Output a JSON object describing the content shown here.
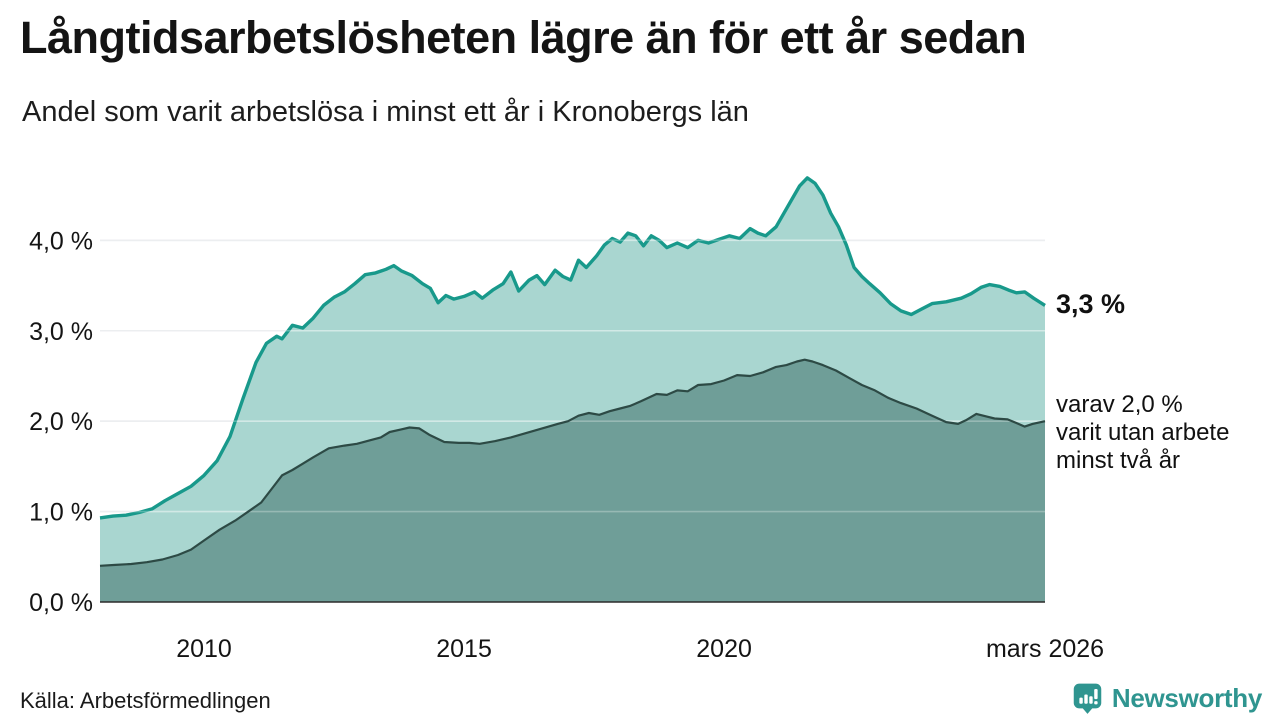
{
  "header": {
    "title": "Långtidsarbetslösheten lägre än för ett år sedan",
    "subtitle": "Andel som varit arbetslösa i minst ett år i Kronobergs län"
  },
  "annotations": {
    "series1_end_label": "3,3 %",
    "series2_label_lines": [
      "varav 2,0 %",
      "varit utan arbete",
      "minst två år"
    ]
  },
  "footer": {
    "source": "Källa: Arbetsförmedlingen",
    "brand": "Newsworthy",
    "brand_icon": "bar-chart-speech-bubble"
  },
  "colors": {
    "series1_line": "#18998b",
    "series1_fill": "#a9d6d0",
    "series2_line": "#2d4a45",
    "series2_fill": "#6f9e98",
    "gridline": "#dcdfe3",
    "axis_line": "#2b2b2b",
    "text": "#141414",
    "brand_teal": "#2f9590"
  },
  "chart_data": {
    "type": "area",
    "title": "Långtidsarbetslösheten lägre än för ett år sedan",
    "subtitle": "Andel som varit arbetslösa i minst ett år i Kronobergs län",
    "xlabel": "",
    "ylabel": "",
    "xlim": [
      2008.0,
      2026.17
    ],
    "ylim": [
      0,
      4.8
    ],
    "grid": true,
    "legend_position": "right-annotations",
    "y_ticks": [
      {
        "v": 0,
        "label": "0,0 %"
      },
      {
        "v": 1,
        "label": "1,0 %"
      },
      {
        "v": 2,
        "label": "2,0 %"
      },
      {
        "v": 3,
        "label": "3,0 %"
      },
      {
        "v": 4,
        "label": "4,0 %"
      }
    ],
    "x_ticks": [
      {
        "x": 2010,
        "label": "2010"
      },
      {
        "x": 2015,
        "label": "2015"
      },
      {
        "x": 2020,
        "label": "2020"
      },
      {
        "x": 2026.17,
        "label": "mars 2026"
      }
    ],
    "series": [
      {
        "name": "arbetslösa minst ett år",
        "end_label": "3,3 %",
        "end_value": 3.3,
        "line_color": "#18998b",
        "fill_color": "#a9d6d0",
        "points": [
          [
            2008.0,
            0.93
          ],
          [
            2008.25,
            0.95
          ],
          [
            2008.5,
            0.96
          ],
          [
            2008.75,
            0.99
          ],
          [
            2009.0,
            1.03
          ],
          [
            2009.25,
            1.12
          ],
          [
            2009.5,
            1.2
          ],
          [
            2009.75,
            1.28
          ],
          [
            2010.0,
            1.4
          ],
          [
            2010.25,
            1.56
          ],
          [
            2010.5,
            1.83
          ],
          [
            2010.75,
            2.25
          ],
          [
            2011.0,
            2.65
          ],
          [
            2011.2,
            2.86
          ],
          [
            2011.4,
            2.94
          ],
          [
            2011.5,
            2.91
          ],
          [
            2011.7,
            3.06
          ],
          [
            2011.9,
            3.03
          ],
          [
            2012.1,
            3.14
          ],
          [
            2012.3,
            3.28
          ],
          [
            2012.5,
            3.37
          ],
          [
            2012.7,
            3.43
          ],
          [
            2012.9,
            3.52
          ],
          [
            2013.1,
            3.62
          ],
          [
            2013.3,
            3.64
          ],
          [
            2013.5,
            3.68
          ],
          [
            2013.65,
            3.72
          ],
          [
            2013.8,
            3.66
          ],
          [
            2014.0,
            3.61
          ],
          [
            2014.2,
            3.52
          ],
          [
            2014.35,
            3.47
          ],
          [
            2014.5,
            3.31
          ],
          [
            2014.65,
            3.39
          ],
          [
            2014.8,
            3.35
          ],
          [
            2015.0,
            3.38
          ],
          [
            2015.2,
            3.43
          ],
          [
            2015.35,
            3.36
          ],
          [
            2015.55,
            3.45
          ],
          [
            2015.75,
            3.52
          ],
          [
            2015.9,
            3.65
          ],
          [
            2016.05,
            3.44
          ],
          [
            2016.25,
            3.56
          ],
          [
            2016.4,
            3.61
          ],
          [
            2016.55,
            3.51
          ],
          [
            2016.75,
            3.67
          ],
          [
            2016.9,
            3.6
          ],
          [
            2017.05,
            3.56
          ],
          [
            2017.2,
            3.78
          ],
          [
            2017.35,
            3.7
          ],
          [
            2017.55,
            3.83
          ],
          [
            2017.7,
            3.95
          ],
          [
            2017.85,
            4.02
          ],
          [
            2018.0,
            3.98
          ],
          [
            2018.15,
            4.08
          ],
          [
            2018.3,
            4.05
          ],
          [
            2018.45,
            3.94
          ],
          [
            2018.6,
            4.05
          ],
          [
            2018.75,
            4.0
          ],
          [
            2018.9,
            3.92
          ],
          [
            2019.1,
            3.97
          ],
          [
            2019.3,
            3.92
          ],
          [
            2019.5,
            4.0
          ],
          [
            2019.7,
            3.97
          ],
          [
            2019.9,
            4.01
          ],
          [
            2020.1,
            4.05
          ],
          [
            2020.3,
            4.02
          ],
          [
            2020.5,
            4.13
          ],
          [
            2020.65,
            4.08
          ],
          [
            2020.8,
            4.05
          ],
          [
            2021.0,
            4.15
          ],
          [
            2021.15,
            4.3
          ],
          [
            2021.3,
            4.45
          ],
          [
            2021.45,
            4.6
          ],
          [
            2021.6,
            4.69
          ],
          [
            2021.75,
            4.63
          ],
          [
            2021.9,
            4.5
          ],
          [
            2022.05,
            4.3
          ],
          [
            2022.2,
            4.15
          ],
          [
            2022.35,
            3.95
          ],
          [
            2022.5,
            3.7
          ],
          [
            2022.65,
            3.6
          ],
          [
            2022.8,
            3.52
          ],
          [
            2023.0,
            3.42
          ],
          [
            2023.2,
            3.3
          ],
          [
            2023.4,
            3.22
          ],
          [
            2023.6,
            3.18
          ],
          [
            2023.8,
            3.24
          ],
          [
            2024.0,
            3.3
          ],
          [
            2024.27,
            3.32
          ],
          [
            2024.56,
            3.36
          ],
          [
            2024.75,
            3.41
          ],
          [
            2024.94,
            3.48
          ],
          [
            2025.1,
            3.51
          ],
          [
            2025.3,
            3.49
          ],
          [
            2025.47,
            3.45
          ],
          [
            2025.62,
            3.42
          ],
          [
            2025.78,
            3.43
          ],
          [
            2025.95,
            3.36
          ],
          [
            2026.17,
            3.28
          ]
        ]
      },
      {
        "name": "varav arbetslösa minst två år",
        "end_label": "varav 2,0 % varit utan arbete minst två år",
        "end_value": 2.0,
        "line_color": "#2d4a45",
        "fill_color": "#6f9e98",
        "points": [
          [
            2008.0,
            0.4
          ],
          [
            2008.3,
            0.41
          ],
          [
            2008.6,
            0.42
          ],
          [
            2008.9,
            0.44
          ],
          [
            2009.2,
            0.47
          ],
          [
            2009.5,
            0.52
          ],
          [
            2009.75,
            0.58
          ],
          [
            2010.0,
            0.68
          ],
          [
            2010.3,
            0.8
          ],
          [
            2010.6,
            0.9
          ],
          [
            2010.9,
            1.02
          ],
          [
            2011.1,
            1.1
          ],
          [
            2011.3,
            1.25
          ],
          [
            2011.5,
            1.4
          ],
          [
            2011.7,
            1.46
          ],
          [
            2011.9,
            1.53
          ],
          [
            2012.1,
            1.6
          ],
          [
            2012.4,
            1.7
          ],
          [
            2012.7,
            1.73
          ],
          [
            2012.94,
            1.75
          ],
          [
            2013.2,
            1.79
          ],
          [
            2013.4,
            1.82
          ],
          [
            2013.57,
            1.88
          ],
          [
            2013.8,
            1.91
          ],
          [
            2013.95,
            1.93
          ],
          [
            2014.14,
            1.92
          ],
          [
            2014.33,
            1.85
          ],
          [
            2014.62,
            1.77
          ],
          [
            2014.9,
            1.76
          ],
          [
            2015.1,
            1.76
          ],
          [
            2015.3,
            1.75
          ],
          [
            2015.6,
            1.78
          ],
          [
            2015.9,
            1.82
          ],
          [
            2016.2,
            1.87
          ],
          [
            2016.5,
            1.92
          ],
          [
            2016.8,
            1.97
          ],
          [
            2017.0,
            2.0
          ],
          [
            2017.2,
            2.06
          ],
          [
            2017.4,
            2.09
          ],
          [
            2017.6,
            2.07
          ],
          [
            2017.8,
            2.11
          ],
          [
            2018.0,
            2.14
          ],
          [
            2018.2,
            2.17
          ],
          [
            2018.4,
            2.22
          ],
          [
            2018.7,
            2.3
          ],
          [
            2018.9,
            2.29
          ],
          [
            2019.1,
            2.34
          ],
          [
            2019.3,
            2.33
          ],
          [
            2019.5,
            2.4
          ],
          [
            2019.75,
            2.41
          ],
          [
            2020.0,
            2.45
          ],
          [
            2020.25,
            2.51
          ],
          [
            2020.5,
            2.5
          ],
          [
            2020.75,
            2.54
          ],
          [
            2021.0,
            2.6
          ],
          [
            2021.2,
            2.62
          ],
          [
            2021.4,
            2.66
          ],
          [
            2021.55,
            2.68
          ],
          [
            2021.7,
            2.66
          ],
          [
            2021.9,
            2.62
          ],
          [
            2022.15,
            2.56
          ],
          [
            2022.4,
            2.48
          ],
          [
            2022.65,
            2.4
          ],
          [
            2022.9,
            2.34
          ],
          [
            2023.15,
            2.26
          ],
          [
            2023.4,
            2.2
          ],
          [
            2023.7,
            2.14
          ],
          [
            2024.0,
            2.06
          ],
          [
            2024.27,
            1.99
          ],
          [
            2024.5,
            1.97
          ],
          [
            2024.65,
            2.01
          ],
          [
            2024.85,
            2.08
          ],
          [
            2025.05,
            2.05
          ],
          [
            2025.2,
            2.03
          ],
          [
            2025.45,
            2.02
          ],
          [
            2025.62,
            1.98
          ],
          [
            2025.78,
            1.94
          ],
          [
            2025.93,
            1.97
          ],
          [
            2026.17,
            2.0
          ]
        ]
      }
    ]
  }
}
